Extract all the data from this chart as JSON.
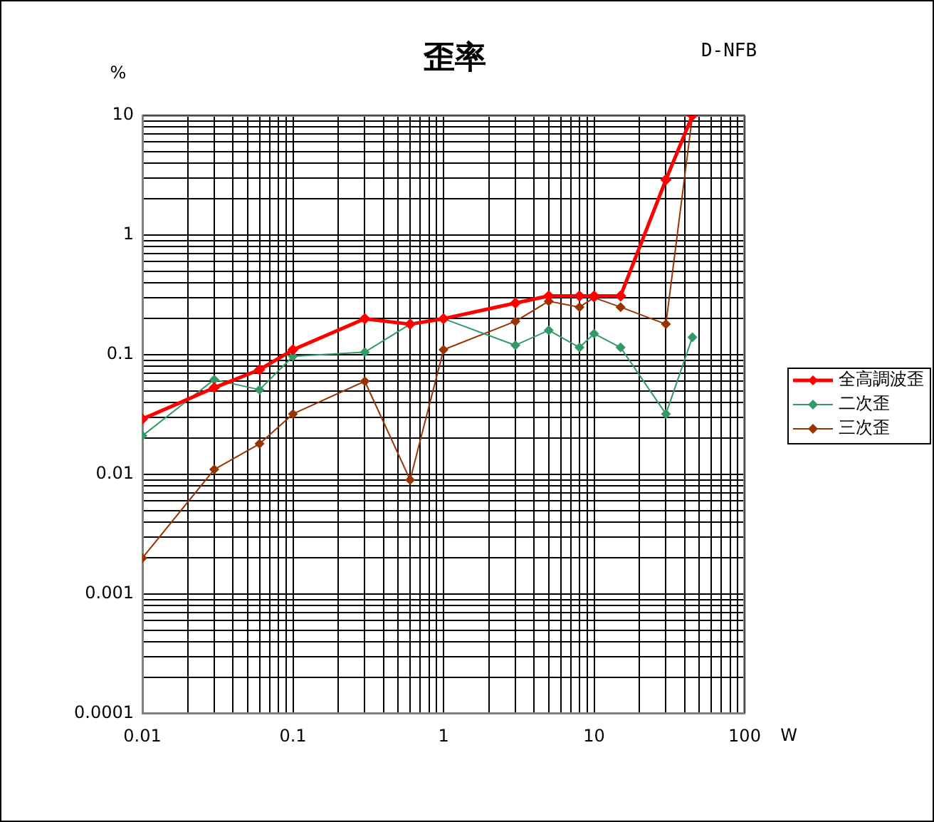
{
  "chart_data": {
    "type": "line",
    "title": "歪率",
    "subtitle": "D-NFB",
    "xlabel": "W",
    "ylabel": "%",
    "x": [
      0.01,
      0.03,
      0.06,
      0.1,
      0.3,
      0.6,
      1,
      3,
      5,
      8,
      10,
      15,
      30,
      45
    ],
    "series": [
      {
        "name": "全高調波歪",
        "color": "#ff0000",
        "values": [
          0.029,
          0.053,
          0.075,
          0.11,
          0.2,
          0.18,
          0.2,
          0.27,
          0.31,
          0.31,
          0.31,
          0.31,
          2.9,
          10
        ]
      },
      {
        "name": "二次歪",
        "color": "#339966",
        "values": [
          0.021,
          0.062,
          0.051,
          0.097,
          0.105,
          0.18,
          0.2,
          0.12,
          0.16,
          0.115,
          0.15,
          0.115,
          0.032,
          0.14
        ]
      },
      {
        "name": "三次歪",
        "color": "#993300",
        "values": [
          0.002,
          0.011,
          0.018,
          0.032,
          0.06,
          0.009,
          0.11,
          0.19,
          0.28,
          0.25,
          0.3,
          0.25,
          0.18,
          10
        ]
      }
    ],
    "log": "xy",
    "xlim": [
      0.01,
      100
    ],
    "ylim": [
      0.0001,
      10
    ],
    "xticks": [
      0.01,
      {
        "value": 0.02,
        "label": null
      },
      {
        "value": 0.03,
        "label": null
      },
      {
        "value": 0.04,
        "label": null
      },
      {
        "value": 0.05,
        "label": null
      },
      {
        "value": 0.06,
        "label": null
      },
      {
        "value": 0.07,
        "label": null
      },
      {
        "value": 0.08,
        "label": null
      },
      {
        "value": 0.09,
        "label": null
      },
      0.1,
      {
        "value": 0.2,
        "label": null
      },
      {
        "value": 0.3,
        "label": null
      },
      {
        "value": 0.4,
        "label": null
      },
      {
        "value": 0.5,
        "label": null
      },
      {
        "value": 0.6,
        "label": null
      },
      {
        "value": 0.7,
        "label": null
      },
      {
        "value": 0.8,
        "label": null
      },
      {
        "value": 0.9,
        "label": null
      },
      1,
      {
        "value": 2,
        "label": null
      },
      {
        "value": 3,
        "label": null
      },
      {
        "value": 4,
        "label": null
      },
      {
        "value": 5,
        "label": null
      },
      {
        "value": 6,
        "label": null
      },
      {
        "value": 7,
        "label": null
      },
      {
        "value": 8,
        "label": null
      },
      {
        "value": 9,
        "label": null
      },
      10,
      {
        "value": 20,
        "label": null
      },
      {
        "value": 30,
        "label": null
      },
      {
        "value": 40,
        "label": null
      },
      {
        "value": 50,
        "label": null
      },
      {
        "value": 60,
        "label": null
      },
      {
        "value": 70,
        "label": null
      },
      {
        "value": 80,
        "label": null
      },
      {
        "value": 90,
        "label": null
      },
      100
    ],
    "yticks": [
      0.0001,
      {
        "value": 0.0002,
        "label": null
      },
      {
        "value": 0.0003,
        "label": null
      },
      {
        "value": 0.0004,
        "label": null
      },
      {
        "value": 0.0005,
        "label": null
      },
      {
        "value": 0.0006,
        "label": null
      },
      {
        "value": 0.0007,
        "label": null
      },
      {
        "value": 0.0008,
        "label": null
      },
      {
        "value": 0.0009,
        "label": null
      },
      0.001,
      {
        "value": 0.002,
        "label": null
      },
      {
        "value": 0.003,
        "label": null
      },
      {
        "value": 0.004,
        "label": null
      },
      {
        "value": 0.005,
        "label": null
      },
      {
        "value": 0.006,
        "label": null
      },
      {
        "value": 0.007,
        "label": null
      },
      {
        "value": 0.008,
        "label": null
      },
      {
        "value": 0.009,
        "label": null
      },
      0.01,
      {
        "value": 0.02,
        "label": null
      },
      {
        "value": 0.03,
        "label": null
      },
      {
        "value": 0.04,
        "label": null
      },
      {
        "value": 0.05,
        "label": null
      },
      {
        "value": 0.06,
        "label": null
      },
      {
        "value": 0.07,
        "label": null
      },
      {
        "value": 0.08,
        "label": null
      },
      {
        "value": 0.09,
        "label": null
      },
      0.1,
      {
        "value": 0.2,
        "label": null
      },
      {
        "value": 0.3,
        "label": null
      },
      {
        "value": 0.4,
        "label": null
      },
      {
        "value": 0.5,
        "label": null
      },
      {
        "value": 0.6,
        "label": null
      },
      {
        "value": 0.7,
        "label": null
      },
      {
        "value": 0.8,
        "label": null
      },
      {
        "value": 0.9,
        "label": null
      },
      1,
      {
        "value": 2,
        "label": null
      },
      {
        "value": 3,
        "label": null
      },
      {
        "value": 4,
        "label": null
      },
      {
        "value": 5,
        "label": null
      },
      {
        "value": 6,
        "label": null
      },
      {
        "value": 7,
        "label": null
      },
      {
        "value": 8,
        "label": null
      },
      {
        "value": 9,
        "label": null
      },
      10
    ],
    "grid": true,
    "legend": "right",
    "marker": "diamond",
    "line_style": "solid"
  }
}
